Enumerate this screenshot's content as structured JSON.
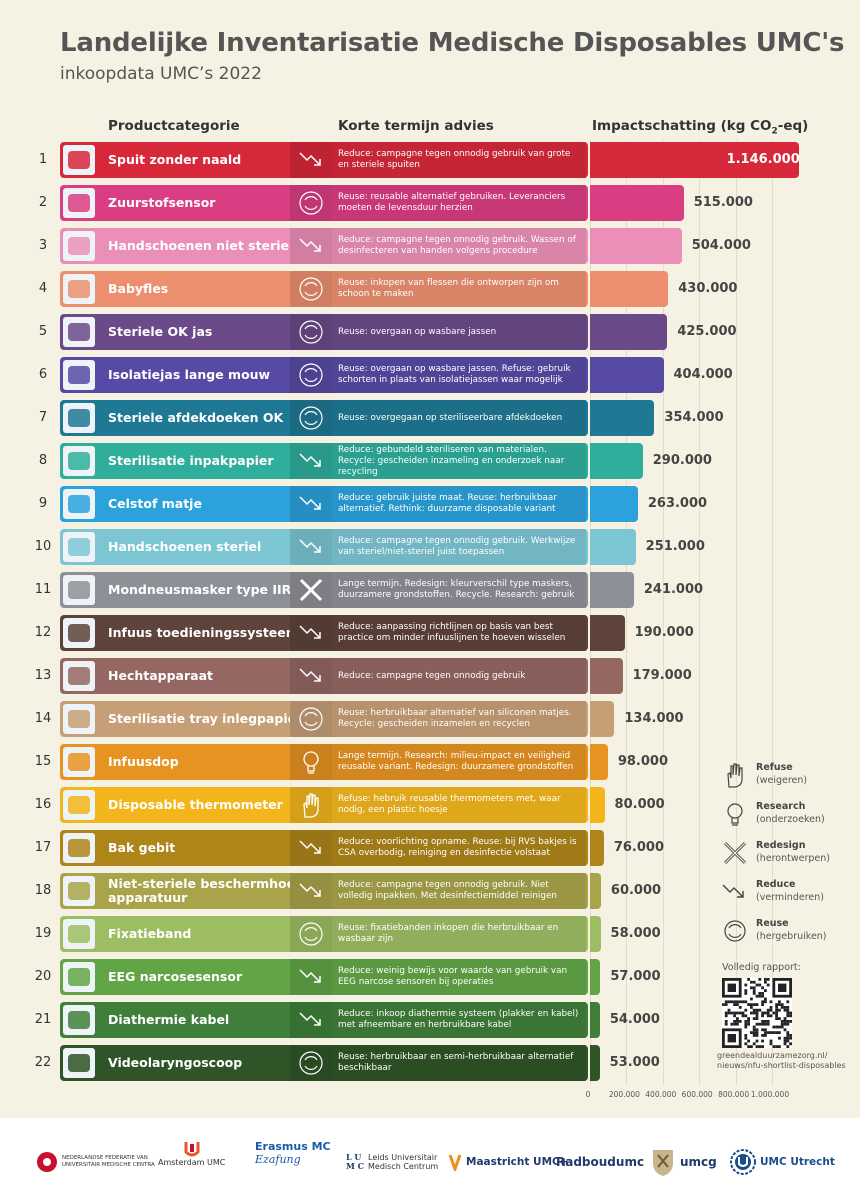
{
  "title": "Landelijke Inventarisatie Medische Disposables UMC's",
  "subtitle": "inkoopdata UMC’s 2022",
  "columns": {
    "category": "Productcategorie",
    "advice": "Korte termijn advies",
    "impact_prefix": "Impactschatting (kg CO",
    "impact_sub": "2",
    "impact_suffix": "-eq)"
  },
  "chart_data": {
    "type": "bar",
    "orientation": "horizontal",
    "xlim": [
      0,
      1000000
    ],
    "x_ticks": [
      "0",
      "200.000",
      "400.000",
      "600.000",
      "800.000",
      "1.000.000"
    ],
    "x_tick_values": [
      0,
      200000,
      400000,
      600000,
      800000,
      1000000
    ],
    "items": [
      {
        "rank": "1",
        "category": "Spuit zonder naald",
        "advice": "Reduce: campagne tegen onnodig gebruik van grote en steriele spuiten",
        "strategy": "reduce",
        "value": 1146000,
        "label": "1.146.000",
        "color": "#d7283a"
      },
      {
        "rank": "2",
        "category": "Zuurstofsensor",
        "advice": "Reuse: reusable alternatief gebruiken. Leveranciers moeten de levensduur herzien",
        "strategy": "reuse",
        "value": 515000,
        "label": "515.000",
        "color": "#d93d82"
      },
      {
        "rank": "3",
        "category": "Handschoenen niet steriel",
        "advice": "Reduce: campagne tegen onnodig gebruik. Wassen of desinfecteren van handen volgens procedure",
        "strategy": "reduce",
        "value": 504000,
        "label": "504.000",
        "color": "#ec8fb8"
      },
      {
        "rank": "4",
        "category": "Babyfles",
        "advice": "Reuse: inkopen van flessen die ontworpen zijn om schoon te maken",
        "strategy": "reuse",
        "value": 430000,
        "label": "430.000",
        "color": "#ec8f6f"
      },
      {
        "rank": "5",
        "category": "Steriele OK jas",
        "advice": "Reuse: overgaan op wasbare jassen",
        "strategy": "reuse",
        "value": 425000,
        "label": "425.000",
        "color": "#6b4a89"
      },
      {
        "rank": "6",
        "category": "Isolatiejas lange mouw",
        "advice": "Reuse: overgaan op wasbare jassen. Refuse: gebruik schorten in plaats van isolatiejassen waar mogelijk",
        "strategy": "reuse",
        "value": 404000,
        "label": "404.000",
        "color": "#574aa4"
      },
      {
        "rank": "7",
        "category": "Steriele afdekdoeken OK",
        "advice": "Reuse: overgegaan op steriliseerbare afdekdoeken",
        "strategy": "reuse",
        "value": 354000,
        "label": "354.000",
        "color": "#1f7894"
      },
      {
        "rank": "8",
        "category": "Sterilisatie inpakpapier",
        "advice": "Reduce: gebundeld steriliseren van materialen. Recycle: gescheiden inzameling en onderzoek naar recycling",
        "strategy": "reduce",
        "value": 290000,
        "label": "290.000",
        "color": "#2fae9c"
      },
      {
        "rank": "9",
        "category": "Celstof matje",
        "advice": "Reduce: gebruik juiste maat. Reuse: herbruikbaar alternatief. Rethink: duurzame disposable variant",
        "strategy": "reduce",
        "value": 263000,
        "label": "263.000",
        "color": "#2ba2dc"
      },
      {
        "rank": "10",
        "category": "Handschoenen steriel",
        "advice": "Reduce: campagne tegen onnodig gebruik. Werkwijze  van steriel/niet-steriel  juist toepassen",
        "strategy": "reduce",
        "value": 251000,
        "label": "251.000",
        "color": "#7cc6d4"
      },
      {
        "rank": "11",
        "category": "Mondneusmasker type IIR",
        "advice": "Lange termijn. Redesign: kleurverschil type maskers, duurzamere grondstoffen. Recycle. Research: gebruik",
        "strategy": "redesign",
        "value": 241000,
        "label": "241.000",
        "color": "#8e9097"
      },
      {
        "rank": "12",
        "category": "Infuus toedieningssysteem",
        "advice": "Reduce: aanpassing richtlijnen op basis van best practice om minder infuuslijnen te hoeven wisselen",
        "strategy": "reduce",
        "value": 190000,
        "label": "190.000",
        "color": "#5d4339"
      },
      {
        "rank": "13",
        "category": "Hechtapparaat",
        "advice": "Reduce: campagne tegen onnodig gebruik",
        "strategy": "reduce",
        "value": 179000,
        "label": "179.000",
        "color": "#946763"
      },
      {
        "rank": "14",
        "category": "Sterilisatie tray inlegpapier",
        "advice": "Reuse: herbruikbaar alternatief van siliconen matjes. Recycle: gescheiden inzamelen en recyclen",
        "strategy": "reuse",
        "value": 134000,
        "label": "134.000",
        "color": "#c79f77"
      },
      {
        "rank": "15",
        "category": "Infuusdop",
        "advice": "Lange termijn. Research: milieu-impact en veiligheid reusable variant. Redesign: duurzamere grondstoffen",
        "strategy": "research",
        "value": 98000,
        "label": "98.000",
        "color": "#e69321"
      },
      {
        "rank": "16",
        "category": "Disposable thermometer",
        "advice": "Refuse: hebruik reusable thermometers met, waar nodig, een plastic hoesje",
        "strategy": "refuse",
        "value": 80000,
        "label": "80.000",
        "color": "#f2b51c"
      },
      {
        "rank": "17",
        "category": "Bak gebit",
        "advice": "Reduce: voorlichting opname. Reuse: bij RVS bakjes is CSA overbodig,  reiniging en desinfectie  volstaat",
        "strategy": "reduce",
        "value": 76000,
        "label": "76.000",
        "color": "#ad8519"
      },
      {
        "rank": "18",
        "category": "Niet-steriele beschermhoes voor apparatuur",
        "advice": "Reduce: campagne tegen onnodig gebruik. Niet volledig inpakken. Met desinfectiemiddel reinigen",
        "strategy": "reduce",
        "value": 60000,
        "label": "60.000",
        "color": "#a9a34a"
      },
      {
        "rank": "19",
        "category": "Fixatieband",
        "advice": "Reuse: fixatiebanden inkopen die herbruikbaar en wasbaar zijn",
        "strategy": "reuse",
        "value": 58000,
        "label": "58.000",
        "color": "#9dbd63"
      },
      {
        "rank": "20",
        "category": "EEG narcosesensor",
        "advice": "Reduce: weinig bewijs voor waarde van gebruik van EEG narcose sensoren bij operaties",
        "strategy": "reduce",
        "value": 57000,
        "label": "57.000",
        "color": "#62a547"
      },
      {
        "rank": "21",
        "category": "Diathermie kabel",
        "advice": "Reduce: inkoop diathermie systeem (plakker en kabel) met afneembare en herbruikbare kabel",
        "strategy": "reduce",
        "value": 54000,
        "label": "54.000",
        "color": "#3f7f3a"
      },
      {
        "rank": "22",
        "category": "Videolaryngoscoop",
        "advice": "Reuse: herbruikbaar en semi-herbruikbaar alternatief beschikbaar",
        "strategy": "reuse",
        "value": 53000,
        "label": "53.000",
        "color": "#2f5427"
      }
    ]
  },
  "legend": {
    "items": [
      {
        "key": "refuse",
        "label": "Refuse",
        "sub": "(weigeren)"
      },
      {
        "key": "research",
        "label": "Research",
        "sub": "(onderzoeken)"
      },
      {
        "key": "redesign",
        "label": "Redesign",
        "sub": "(herontwerpen)"
      },
      {
        "key": "reduce",
        "label": "Reduce",
        "sub": "(verminderen)"
      },
      {
        "key": "reuse",
        "label": "Reuse",
        "sub": "(hergebruiken)"
      }
    ]
  },
  "report": {
    "label": "Volledig rapport:",
    "url_line1": "greendealduurzamezorg.nl/",
    "url_line2": "nieuws/nfu-shortlist-disposables"
  },
  "footer": {
    "nfu_line1": "NEDERLANDSE FEDERATIE VAN",
    "nfu_line2": "UNIVERSITAIR MEDISCHE CENTRA",
    "amsterdam": "Amsterdam UMC",
    "erasmus": "Erasmus MC",
    "lumc_line1": "Leids Universitair",
    "lumc_line2": "Medisch Centrum",
    "maastricht": "Maastricht UMC+",
    "radboud": "Radboudumc",
    "umcg": "umcg",
    "utrecht": "UMC Utrecht"
  },
  "colors": {
    "background": "#f6f2e3",
    "grid": "#e2dccb"
  }
}
